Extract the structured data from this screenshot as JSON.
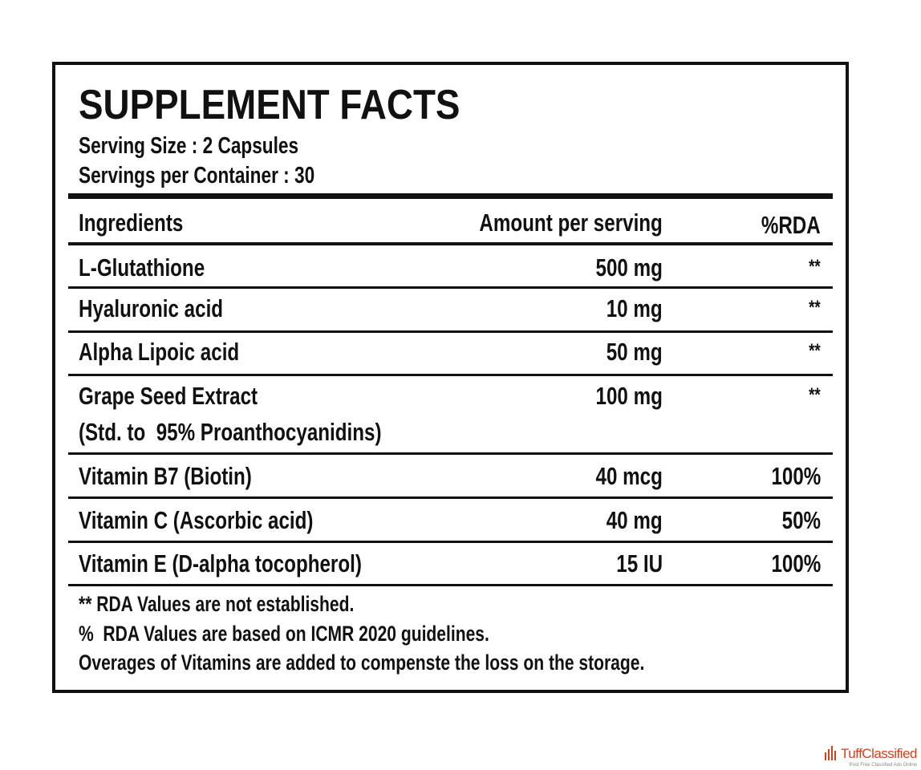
{
  "title": "SUPPLEMENT FACTS",
  "serving_size": "Serving Size : 2 Capsules",
  "servings_per_container": "Servings per Container : 30",
  "table": {
    "header": [
      "Ingredients",
      "Amount per serving",
      "%RDA"
    ],
    "rows": [
      {
        "name": "L-Glutathione",
        "amount": "500 mg",
        "rda": "**"
      },
      {
        "name": "Hyaluronic acid",
        "amount": "10 mg",
        "rda": "**"
      },
      {
        "name": "Alpha Lipoic acid",
        "amount": "50 mg",
        "rda": "**"
      },
      {
        "name": "Grape Seed Extract",
        "note": "(Std. to  95% Proanthocyanidins)",
        "amount": "100 mg",
        "rda": "**"
      },
      {
        "name": "Vitamin B7 (Biotin)",
        "amount": "40 mcg",
        "rda": "100%"
      },
      {
        "name": "Vitamin C (Ascorbic acid)",
        "amount": "40 mg",
        "rda": "50%"
      },
      {
        "name": "Vitamin E (D-alpha tocopherol)",
        "amount": "15 IU",
        "rda": "100%"
      }
    ]
  },
  "footnotes": [
    "** RDA Values are not established.",
    "%  RDA Values are based on ICMR 2020 guidelines.",
    "Overages of Vitamins are added to compenste the loss on the storage."
  ],
  "watermark": {
    "brand": "TuffClassified",
    "tagline": "Post Free Classified Ads Online"
  }
}
